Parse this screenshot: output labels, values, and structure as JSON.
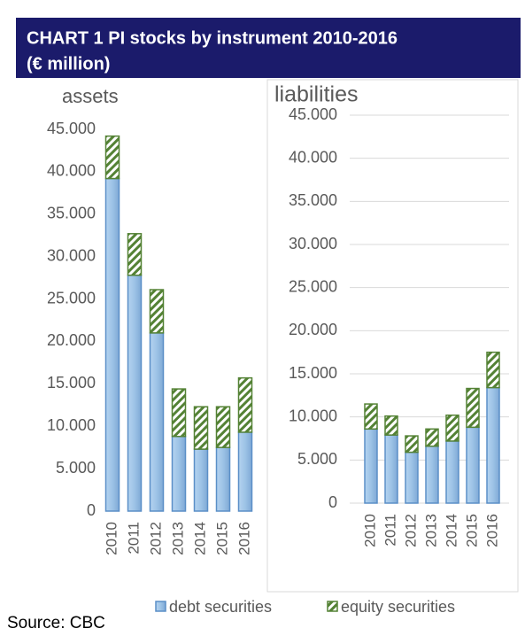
{
  "title": "CHART 1   PI stocks by instrument 2010-2016",
  "subtitle": "(€ million)",
  "source": "Source: CBC",
  "chart_data": [
    {
      "type": "bar",
      "stacked": true,
      "title": "assets",
      "grid": false,
      "categories": [
        "2010",
        "2011",
        "2012",
        "2013",
        "2014",
        "2015",
        "2016"
      ],
      "series": [
        {
          "name": "debt securities",
          "color": "#9dc3e6",
          "values": [
            39200,
            27800,
            21000,
            8800,
            7300,
            7500,
            9300
          ]
        },
        {
          "name": "equity securities",
          "color": "#548235",
          "values": [
            5000,
            4900,
            5100,
            5600,
            5000,
            4800,
            6400
          ]
        }
      ],
      "ylim": [
        0,
        45000
      ],
      "yticks": [
        0,
        {
          "value": 5000,
          "label": "5.000"
        },
        {
          "value": 10000,
          "label": "10.000"
        },
        {
          "value": 15000,
          "label": "15.000"
        },
        {
          "value": 20000,
          "label": "20.000"
        },
        {
          "value": 25000,
          "label": "25.000"
        },
        {
          "value": 30000,
          "label": "30.000"
        },
        {
          "value": 35000,
          "label": "35.000"
        },
        {
          "value": 40000,
          "label": "40.000"
        },
        {
          "value": 45000,
          "label": "45.000"
        }
      ]
    },
    {
      "type": "bar",
      "stacked": true,
      "title": "liabilities",
      "grid": true,
      "categories": [
        "2010",
        "2011",
        "2012",
        "2013",
        "2014",
        "2015",
        "2016"
      ],
      "series": [
        {
          "name": "debt securities",
          "color": "#9dc3e6",
          "values": [
            8600,
            7900,
            5900,
            6600,
            7200,
            8800,
            13400
          ]
        },
        {
          "name": "equity securities",
          "color": "#548235",
          "values": [
            2900,
            2200,
            1900,
            2000,
            3000,
            4500,
            4100
          ]
        }
      ],
      "ylim": [
        0,
        45000
      ],
      "yticks": [
        0,
        {
          "value": 5000,
          "label": "5.000"
        },
        {
          "value": 10000,
          "label": "10.000"
        },
        {
          "value": 15000,
          "label": "15.000"
        },
        {
          "value": 20000,
          "label": "20.000"
        },
        {
          "value": 25000,
          "label": "25.000"
        },
        {
          "value": 30000,
          "label": "30.000"
        },
        {
          "value": 35000,
          "label": "35.000"
        },
        {
          "value": 40000,
          "label": "40.000"
        },
        {
          "value": 45000,
          "label": "45.000"
        }
      ]
    }
  ]
}
